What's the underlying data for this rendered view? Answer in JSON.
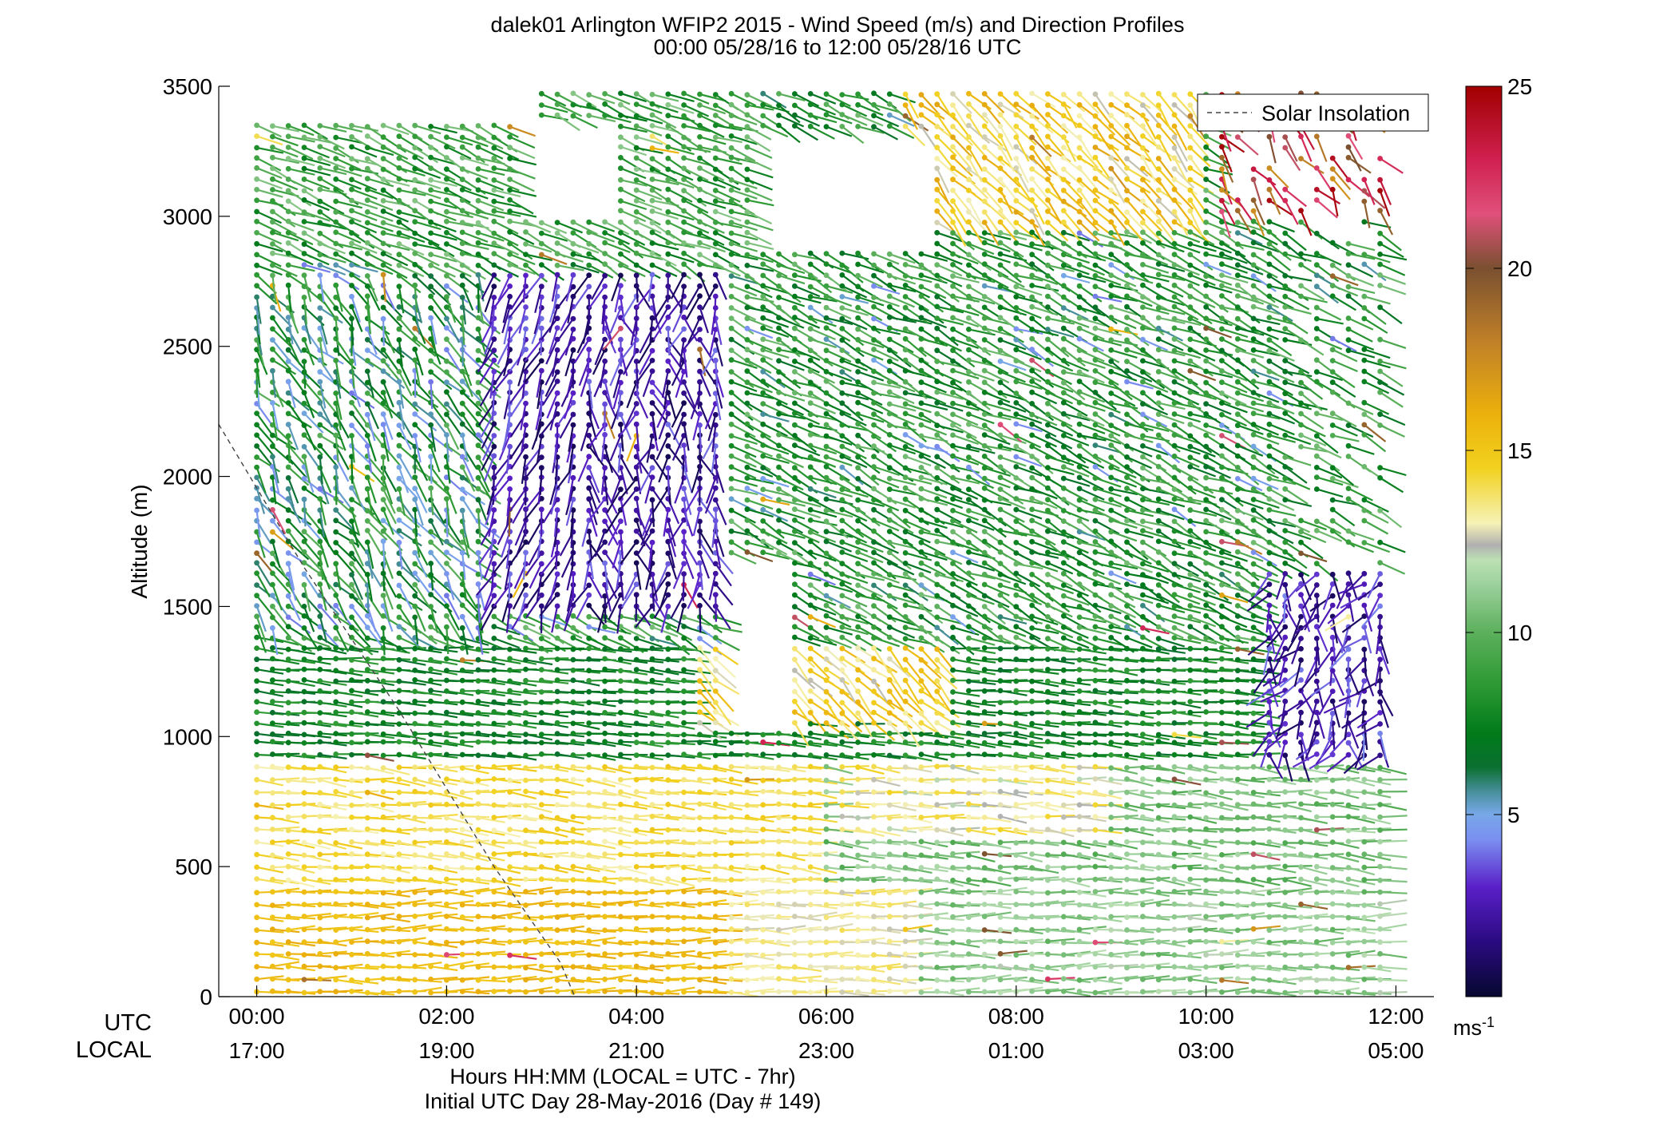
{
  "chart_data": {
    "type": "wind-barb-profile",
    "title": "dalek01 Arlington WFIP2 2015 - Wind Speed (m/s) and Direction Profiles",
    "subtitle": "00:00 05/28/16 to 12:00 05/28/16  UTC",
    "ylabel": "Altitude (m)",
    "ylim": [
      0,
      3500
    ],
    "yticks": [
      "0",
      "500",
      "1000",
      "1500",
      "2000",
      "2500",
      "3000",
      "3500"
    ],
    "x_hours_utc": [
      0,
      2,
      4,
      6,
      8,
      10,
      12
    ],
    "xlim_hours": [
      -0.4,
      12.4
    ],
    "utc_label": "UTC",
    "local_label": "LOCAL",
    "utc_ticks": [
      "00:00",
      "02:00",
      "04:00",
      "06:00",
      "08:00",
      "10:00",
      "12:00"
    ],
    "local_ticks": [
      "17:00",
      "19:00",
      "21:00",
      "23:00",
      "01:00",
      "03:00",
      "05:00"
    ],
    "xlabel": "Hours HH:MM  (LOCAL = UTC - 7hr)",
    "xlabel2": "Initial UTC Day 28-May-2016 (Day # 149)",
    "legend": {
      "label": "Solar Insolation",
      "placement": "top-right"
    },
    "solar_insolation": [
      [
        -0.4,
        2200
      ],
      [
        0.5,
        1650
      ],
      [
        1.5,
        1100
      ],
      [
        2.5,
        500
      ],
      [
        3.2,
        130
      ],
      [
        3.35,
        0
      ]
    ],
    "colorbar": {
      "range": [
        0,
        25
      ],
      "ticks": [
        "5",
        "10",
        "15",
        "20",
        "25"
      ],
      "unit": "ms",
      "unit_exp": "-1",
      "stops": [
        [
          0,
          "#060830"
        ],
        [
          1.5,
          "#2a0a80"
        ],
        [
          3,
          "#5a1fc8"
        ],
        [
          4.3,
          "#7a8ef0"
        ],
        [
          5,
          "#78a8e8"
        ],
        [
          5.6,
          "#4a90a0"
        ],
        [
          6.3,
          "#0a7030"
        ],
        [
          7.2,
          "#007a1a"
        ],
        [
          8.6,
          "#2e9a34"
        ],
        [
          10,
          "#5cb05c"
        ],
        [
          11.3,
          "#9cd09c"
        ],
        [
          12,
          "#bce0b4"
        ],
        [
          12.4,
          "#b0b0b0"
        ],
        [
          13,
          "#f6f2b6"
        ],
        [
          14.5,
          "#f2d220"
        ],
        [
          16,
          "#ecb00c"
        ],
        [
          18,
          "#c08028"
        ],
        [
          20,
          "#7a5030"
        ],
        [
          21.5,
          "#e0507a"
        ],
        [
          23,
          "#d02050"
        ],
        [
          25,
          "#a00000"
        ]
      ]
    },
    "profiles": {
      "times_hours": "every 10 minutes from 00:00 to 11:50 UTC",
      "altitudes_m": "every ~50 m below 1000 m, every ~40-60 m above",
      "regimes": [
        {
          "hours": [
            0,
            12
          ],
          "alt_m": [
            0,
            400
          ],
          "speed_ms": "14-16 before 05:00, 10-12 after 06:00",
          "from": "west"
        },
        {
          "hours": [
            0,
            12
          ],
          "alt_m": [
            400,
            900
          ],
          "speed_ms": "13-15 early, 9-11 late",
          "from": "west"
        },
        {
          "hours": [
            0,
            5
          ],
          "alt_m": [
            1000,
            1300
          ],
          "speed_ms": 7,
          "from": "west"
        },
        {
          "hours": [
            2.5,
            4.5
          ],
          "alt_m": [
            1500,
            2800
          ],
          "speed_ms": "1-3",
          "from": "variable/north"
        },
        {
          "hours": [
            5.5,
            12
          ],
          "alt_m": [
            1000,
            2800
          ],
          "speed_ms": "7-9",
          "from": "west-northwest"
        },
        {
          "hours": [
            7,
            9.5
          ],
          "alt_m": [
            3000,
            3500
          ],
          "speed_ms": "13-16",
          "from": "northwest"
        },
        {
          "hours": [
            10.5,
            12
          ],
          "alt_m": [
            900,
            1600
          ],
          "speed_ms": "1-4",
          "from": "variable"
        }
      ]
    }
  }
}
